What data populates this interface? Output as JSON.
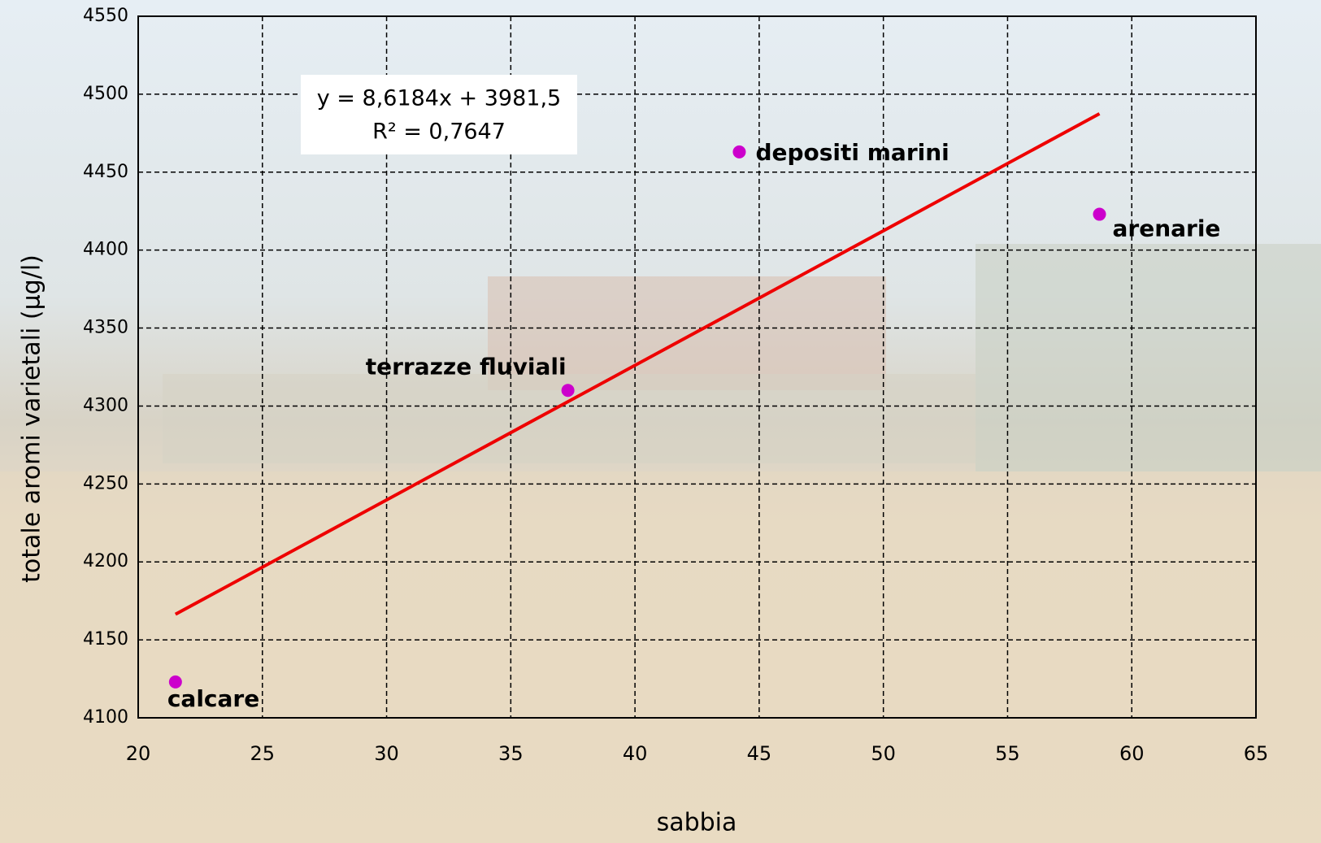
{
  "chart_data": {
    "type": "scatter",
    "x_label": "sabbia",
    "y_label": "totale aromi varietali (µg/l)",
    "series": [
      {
        "color": "#cc00cc",
        "labels": [
          "calcare",
          "terrazze fluviali",
          "depositi marini",
          "arenarie"
        ],
        "x": [
          21.5,
          37.3,
          44.2,
          58.7
        ],
        "values": [
          4123,
          4310,
          4463,
          4423
        ]
      }
    ],
    "trendline": {
      "color": "#ee0000",
      "equation": "y = 8,6184x + 3981,5",
      "r_squared": "R² = 0,7647"
    },
    "xlim": [
      20,
      65
    ],
    "xticks": [
      20,
      25,
      30,
      35,
      40,
      45,
      50,
      55,
      60,
      65
    ],
    "ylim": [
      4100,
      4550
    ],
    "yticks": [
      4100,
      4150,
      4200,
      4250,
      4300,
      4350,
      4400,
      4450,
      4500,
      4550
    ],
    "grid": true
  }
}
